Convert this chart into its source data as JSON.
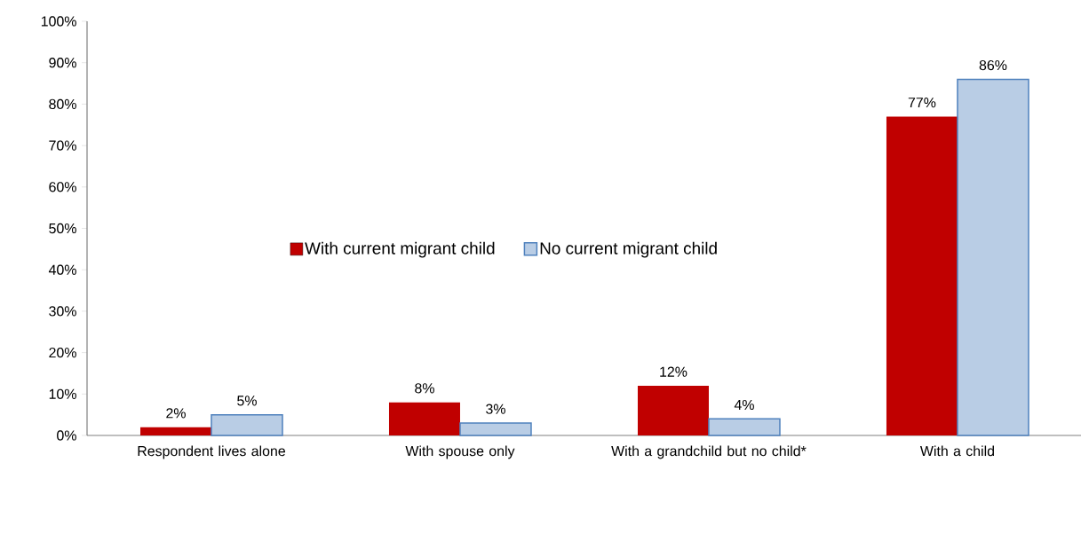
{
  "chart_data": {
    "type": "bar",
    "categories": [
      "Respondent lives alone",
      "With spouse only",
      "With a grandchild but no child*",
      "With a child"
    ],
    "series": [
      {
        "name": "With current migrant child",
        "color": "#c00000",
        "values": [
          2,
          8,
          12,
          77
        ],
        "value_labels": [
          "2%",
          "8%",
          "12%",
          "77%"
        ]
      },
      {
        "name": "No current migrant child",
        "color": "#4f81bd",
        "values": [
          5,
          3,
          4,
          86
        ],
        "value_labels": [
          "5%",
          "3%",
          "4%",
          "86%"
        ]
      }
    ],
    "ylim": [
      0,
      100
    ],
    "yticks": [
      {
        "value": 0,
        "label": "0%"
      },
      {
        "value": 10,
        "label": "10%"
      },
      {
        "value": 20,
        "label": "20%"
      },
      {
        "value": 30,
        "label": "30%"
      },
      {
        "value": 40,
        "label": "40%"
      },
      {
        "value": 50,
        "label": "50%"
      },
      {
        "value": 60,
        "label": "60%"
      },
      {
        "value": 70,
        "label": "70%"
      },
      {
        "value": 80,
        "label": "80%"
      },
      {
        "value": 90,
        "label": "90%"
      },
      {
        "value": 100,
        "label": "100%"
      }
    ],
    "legend": "center"
  }
}
